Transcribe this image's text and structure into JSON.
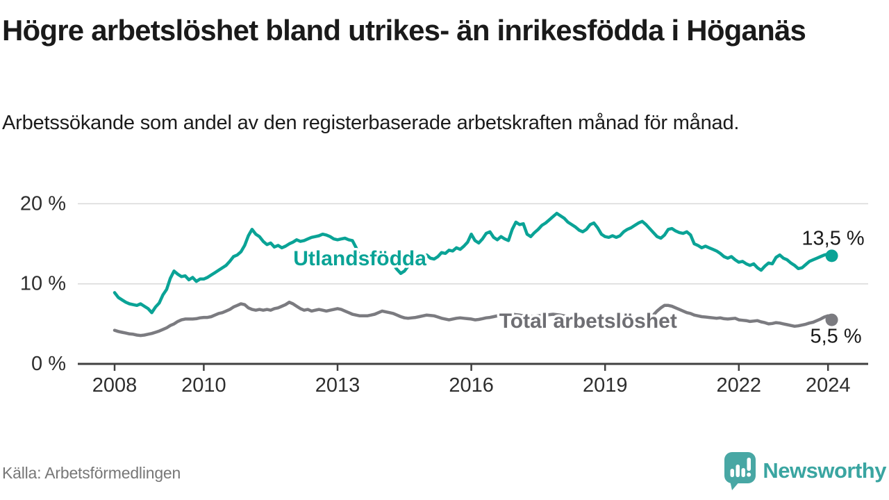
{
  "header": {
    "title": "Högre arbetslöshet bland utrikes- än inrikesfödda i Höganäs",
    "subtitle": "Arbetssökande som andel av den registerbaserade arbetskraften månad för månad."
  },
  "footer": {
    "source": "Källa: Arbetsförmedlingen",
    "brand": "Newsworthy"
  },
  "colors": {
    "accent_teal": "#0aa396",
    "line_gray": "#7b7b80",
    "label_gray": "#6e6e73",
    "grid": "#d9d9d9",
    "axis": "#404040",
    "axis_text": "#2e2e2e",
    "value_text": "#1a1a1a",
    "source_text": "#777777",
    "brand_teal": "#3aa5a1",
    "logo_teal": "#48a7a4"
  },
  "chart_data": {
    "type": "line",
    "title": "Högre arbetslöshet bland utrikes- än inrikesfödda i Höganäs",
    "subtitle": "Arbetssökande som andel av den registerbaserade arbetskraften månad för månad.",
    "x_axis": {
      "unit": "year",
      "range": [
        2007.17,
        2024.9
      ],
      "ticks": [
        2008,
        2010,
        2013,
        2016,
        2019,
        2022,
        2024
      ],
      "tick_labels": [
        "2008",
        "2010",
        "2013",
        "2016",
        "2019",
        "2022",
        "2024"
      ]
    },
    "y_axis": {
      "unit": "percent",
      "range": [
        0,
        21.8
      ],
      "ticks": [
        0,
        10,
        20
      ],
      "tick_labels": [
        "0 %",
        "10 %",
        "20 %"
      ],
      "grid": true
    },
    "legend_position": "inline-labels-on-lines",
    "start_year": 2008.0,
    "step_months": 1,
    "series": [
      {
        "name": "Utlandsfödda",
        "color": "#0aa396",
        "label_anchor": {
          "year": 2013.5,
          "value": 13.15
        },
        "end_value": 13.5,
        "end_label": "13,5 %",
        "values": [
          8.9,
          8.3,
          8.0,
          7.7,
          7.5,
          7.4,
          7.3,
          7.5,
          7.2,
          6.9,
          6.4,
          7.1,
          7.6,
          8.6,
          9.3,
          10.7,
          11.6,
          11.2,
          10.9,
          11.0,
          10.5,
          10.8,
          10.3,
          10.6,
          10.6,
          10.8,
          11.1,
          11.4,
          11.7,
          12.0,
          12.3,
          12.8,
          13.4,
          13.6,
          14.0,
          14.8,
          16.0,
          16.8,
          16.2,
          15.9,
          15.3,
          14.9,
          15.1,
          14.6,
          14.8,
          14.5,
          14.7,
          15.0,
          15.2,
          15.5,
          15.3,
          15.4,
          15.6,
          15.8,
          15.9,
          16.0,
          16.2,
          16.1,
          15.9,
          15.6,
          15.5,
          15.6,
          15.7,
          15.5,
          15.4,
          14.5,
          13.3,
          12.2,
          13.0,
          13.6,
          13.9,
          14.0,
          13.9,
          13.6,
          13.1,
          12.4,
          11.8,
          11.3,
          11.6,
          12.2,
          12.9,
          13.2,
          13.4,
          13.5,
          13.6,
          13.2,
          13.1,
          13.4,
          13.9,
          13.8,
          14.2,
          14.1,
          14.5,
          14.3,
          14.7,
          15.2,
          16.2,
          15.4,
          15.1,
          15.6,
          16.3,
          16.5,
          15.8,
          15.5,
          15.9,
          15.6,
          15.4,
          16.8,
          17.7,
          17.4,
          17.5,
          16.2,
          15.9,
          16.4,
          16.8,
          17.3,
          17.6,
          18.0,
          18.4,
          18.8,
          18.5,
          18.2,
          17.7,
          17.4,
          17.1,
          16.7,
          16.5,
          16.8,
          17.4,
          17.6,
          17.0,
          16.2,
          15.9,
          15.8,
          16.0,
          15.8,
          16.0,
          16.5,
          16.8,
          17.0,
          17.3,
          17.6,
          17.8,
          17.4,
          16.9,
          16.4,
          15.9,
          15.7,
          16.1,
          16.8,
          16.9,
          16.6,
          16.4,
          16.3,
          16.5,
          16.1,
          15.0,
          14.8,
          14.5,
          14.7,
          14.5,
          14.3,
          14.1,
          13.8,
          13.4,
          13.2,
          13.4,
          13.0,
          12.7,
          12.8,
          12.5,
          12.3,
          12.5,
          12.0,
          11.7,
          12.2,
          12.6,
          12.5,
          13.3,
          13.6,
          13.2,
          13.0,
          12.6,
          12.3,
          11.9,
          12.0,
          12.4,
          12.8,
          13.0,
          13.2,
          13.4,
          13.6,
          13.7,
          13.5
        ]
      },
      {
        "name": "Total arbetslöshet",
        "color": "#7b7b80",
        "label_color": "#6e6e73",
        "label_anchor": {
          "year": 2018.62,
          "value": 5.35
        },
        "end_value": 5.5,
        "end_label": "5,5 %",
        "values": [
          4.2,
          4.05,
          3.95,
          3.85,
          3.75,
          3.7,
          3.6,
          3.55,
          3.6,
          3.7,
          3.8,
          3.95,
          4.1,
          4.3,
          4.5,
          4.8,
          5.0,
          5.3,
          5.5,
          5.6,
          5.6,
          5.6,
          5.65,
          5.75,
          5.8,
          5.8,
          5.9,
          6.1,
          6.3,
          6.4,
          6.6,
          6.8,
          7.1,
          7.3,
          7.5,
          7.4,
          7.0,
          6.8,
          6.7,
          6.8,
          6.7,
          6.8,
          6.7,
          6.9,
          7.0,
          7.2,
          7.4,
          7.7,
          7.5,
          7.2,
          6.9,
          6.7,
          6.8,
          6.6,
          6.7,
          6.8,
          6.7,
          6.6,
          6.7,
          6.8,
          6.9,
          6.8,
          6.6,
          6.4,
          6.2,
          6.1,
          6.0,
          6.0,
          6.0,
          6.1,
          6.2,
          6.4,
          6.6,
          6.5,
          6.4,
          6.3,
          6.1,
          5.9,
          5.75,
          5.7,
          5.75,
          5.8,
          5.9,
          6.0,
          6.1,
          6.05,
          6.0,
          5.85,
          5.7,
          5.6,
          5.5,
          5.6,
          5.7,
          5.75,
          5.7,
          5.65,
          5.6,
          5.5,
          5.55,
          5.65,
          5.75,
          5.8,
          5.9,
          6.0,
          6.05,
          6.1,
          6.15,
          6.2,
          6.15,
          6.1,
          6.0,
          5.95,
          5.9,
          5.95,
          6.0,
          6.05,
          6.1,
          6.15,
          6.2,
          6.15,
          6.1,
          6.0,
          5.9,
          5.8,
          5.75,
          5.7,
          5.65,
          5.7,
          5.75,
          5.7,
          5.6,
          5.5,
          5.45,
          5.4,
          5.45,
          5.5,
          5.55,
          5.6,
          5.65,
          5.6,
          5.55,
          5.5,
          5.55,
          5.65,
          5.8,
          6.1,
          6.6,
          7.0,
          7.3,
          7.3,
          7.2,
          7.0,
          6.8,
          6.6,
          6.4,
          6.3,
          6.1,
          6.0,
          5.9,
          5.85,
          5.8,
          5.75,
          5.7,
          5.75,
          5.65,
          5.6,
          5.65,
          5.7,
          5.5,
          5.45,
          5.4,
          5.3,
          5.35,
          5.4,
          5.25,
          5.15,
          5.0,
          5.05,
          5.15,
          5.1,
          5.0,
          4.9,
          4.8,
          4.7,
          4.75,
          4.85,
          4.95,
          5.1,
          5.2,
          5.4,
          5.6,
          5.85,
          6.0,
          5.5
        ]
      }
    ]
  }
}
